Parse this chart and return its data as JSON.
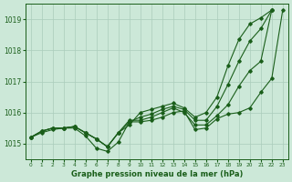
{
  "background_color": "#cce8d8",
  "grid_color": "#aaccbb",
  "line_color": "#1a5e1a",
  "xlabel": "Graphe pression niveau de la mer (hPa)",
  "xlim": [
    -0.5,
    23.5
  ],
  "ylim": [
    1014.5,
    1019.5
  ],
  "yticks": [
    1015,
    1016,
    1017,
    1018,
    1019
  ],
  "xtick_labels": [
    "0",
    "1",
    "2",
    "3",
    "4",
    "5",
    "6",
    "7",
    "8",
    "9",
    "10",
    "11",
    "12",
    "13",
    "14",
    "15",
    "16",
    "17",
    "18",
    "19",
    "20",
    "21",
    "22",
    "23"
  ],
  "series": [
    [
      1015.2,
      1015.4,
      1015.5,
      1015.5,
      1015.55,
      1015.35,
      1015.15,
      1014.9,
      1015.35,
      1015.6,
      1016.0,
      1016.1,
      1016.2,
      1016.3,
      1016.15,
      1015.85,
      1016.0,
      1016.5,
      1017.5,
      1018.35,
      1018.85,
      1019.05,
      1019.3,
      null
    ],
    [
      1015.2,
      1015.4,
      1015.5,
      1015.5,
      1015.55,
      1015.35,
      1015.15,
      1014.9,
      1015.35,
      1015.7,
      1015.85,
      1015.95,
      1016.1,
      1016.2,
      1016.1,
      1015.75,
      1015.75,
      1016.2,
      1016.9,
      1017.65,
      1018.3,
      1018.7,
      1019.3,
      null
    ],
    [
      1015.2,
      1015.4,
      1015.5,
      1015.5,
      1015.55,
      1015.35,
      1015.15,
      1014.9,
      1015.35,
      1015.75,
      1015.75,
      1015.85,
      1016.0,
      1016.15,
      1016.0,
      1015.6,
      1015.6,
      1015.9,
      1016.25,
      1016.85,
      1017.35,
      1017.65,
      1019.3,
      null
    ],
    [
      1015.2,
      1015.35,
      1015.45,
      1015.5,
      1015.5,
      1015.25,
      1014.85,
      1014.75,
      1015.05,
      1015.7,
      1015.7,
      1015.75,
      1015.85,
      1016.0,
      1016.05,
      1015.45,
      1015.5,
      1015.8,
      1015.95,
      1016.0,
      1016.15,
      1016.65,
      1017.1,
      1019.3
    ]
  ]
}
